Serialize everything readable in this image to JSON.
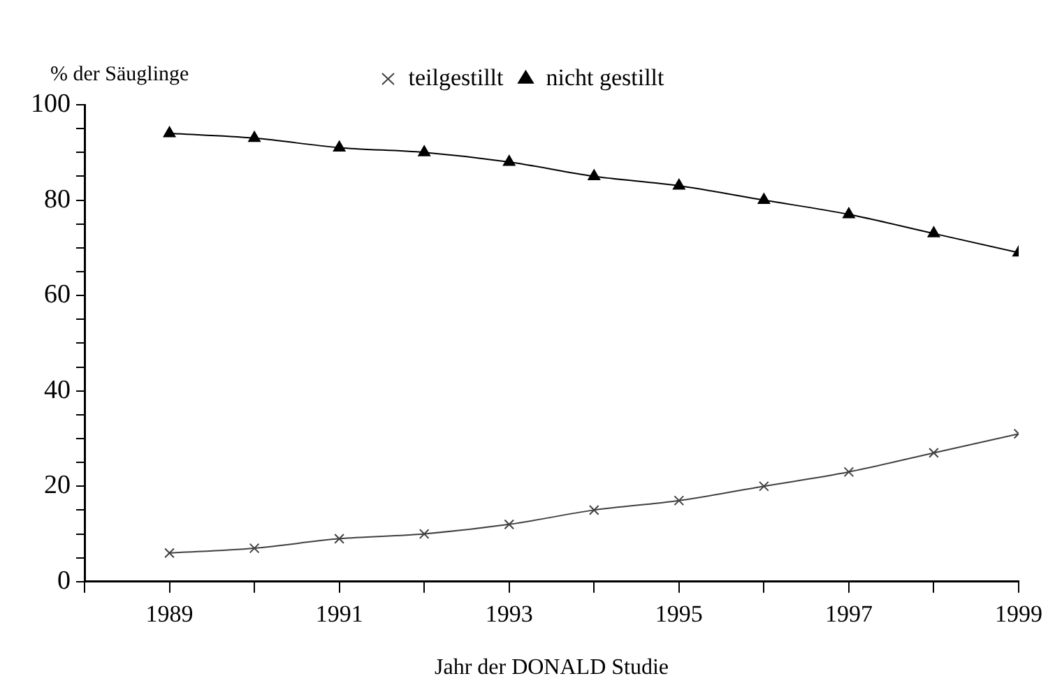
{
  "chart_data": {
    "type": "line",
    "xlabel": "Jahr der DONALD Studie",
    "ylabel": "% der Säuglinge",
    "x": [
      1989,
      1990,
      1991,
      1992,
      1993,
      1994,
      1995,
      1996,
      1997,
      1998,
      1999
    ],
    "series": [
      {
        "name": "teilgestillt",
        "color": "#404040",
        "marker": "cross",
        "values": [
          6,
          7,
          9,
          10,
          12,
          15,
          17,
          20,
          23,
          27,
          31
        ]
      },
      {
        "name": "nicht gestillt",
        "color": "#000000",
        "marker": "triangle",
        "values": [
          94,
          93,
          91,
          90,
          88,
          85,
          83,
          80,
          77,
          73,
          69
        ]
      }
    ],
    "xlim": [
      1988,
      1999
    ],
    "xticks": [
      {
        "value": 1988,
        "label": null
      },
      1989,
      {
        "value": 1990,
        "label": null
      },
      1991,
      {
        "value": 1992,
        "label": null
      },
      1993,
      {
        "value": 1994,
        "label": null
      },
      1995,
      {
        "value": 1996,
        "label": null
      },
      1997,
      {
        "value": 1998,
        "label": null
      },
      1999
    ],
    "ylim": [
      0,
      100
    ],
    "yticks": [
      0,
      {
        "value": 5,
        "label": null
      },
      {
        "value": 10,
        "label": null
      },
      {
        "value": 15,
        "label": null
      },
      20,
      {
        "value": 25,
        "label": null
      },
      {
        "value": 30,
        "label": null
      },
      {
        "value": 35,
        "label": null
      },
      40,
      {
        "value": 45,
        "label": null
      },
      {
        "value": 50,
        "label": null
      },
      {
        "value": 55,
        "label": null
      },
      60,
      {
        "value": 65,
        "label": null
      },
      {
        "value": 70,
        "label": null
      },
      {
        "value": 75,
        "label": null
      },
      80,
      {
        "value": 85,
        "label": null
      },
      {
        "value": 90,
        "label": null
      },
      {
        "value": 95,
        "label": null
      },
      100
    ],
    "grid": false,
    "legend": "top"
  }
}
